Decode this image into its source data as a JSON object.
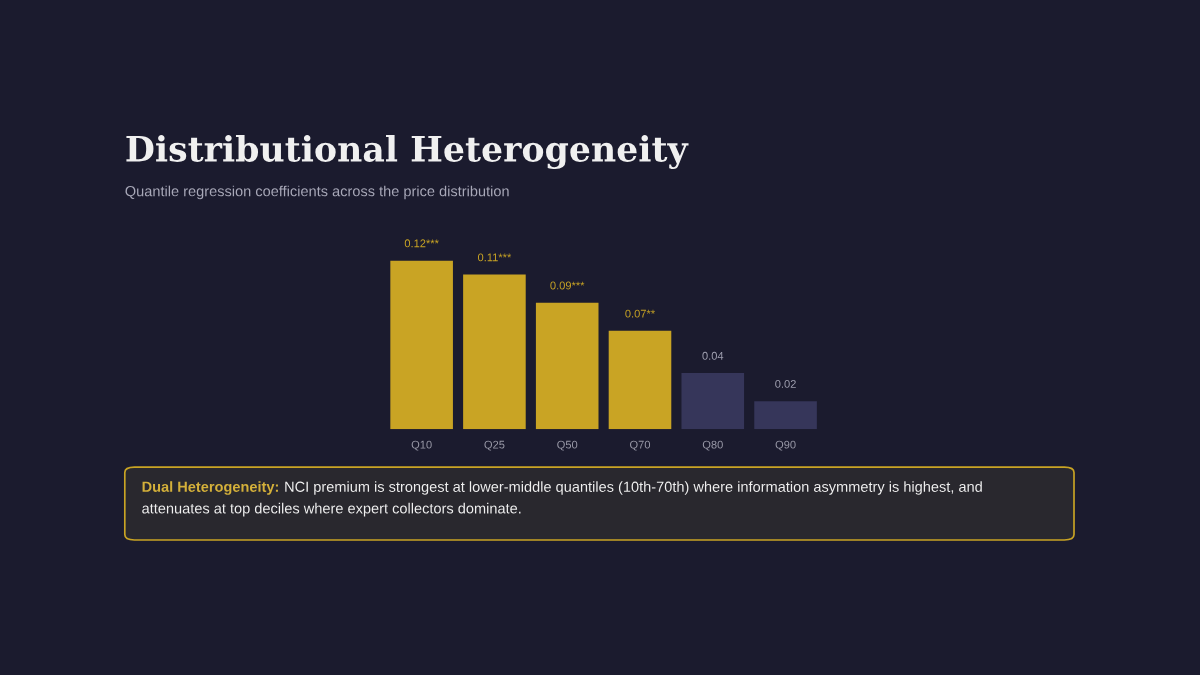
{
  "chart_data": {
    "type": "bar",
    "title": "Distributional Heterogeneity",
    "subtitle": "Quantile regression coefficients across the price distribution",
    "categories": [
      "Q10",
      "Q25",
      "Q50",
      "Q70",
      "Q80",
      "Q90"
    ],
    "values": [
      0.12,
      0.11,
      0.09,
      0.07,
      0.04,
      0.02
    ],
    "value_labels": [
      "0.12***",
      "0.11***",
      "0.09***",
      "0.07**",
      "0.04",
      "0.02"
    ],
    "colors": [
      "#c9a424",
      "#c9a424",
      "#c9a424",
      "#c9a424",
      "#36365a",
      "#36365a"
    ],
    "annotations": [
      "Dual Heterogeneity:",
      "NCI premium is strongest at lower-middle quantiles (10th-70th) where information asymmetry is highest, and attenuates at top deciles where expert collectors dominate."
    ],
    "grid": false,
    "legend": false
  }
}
